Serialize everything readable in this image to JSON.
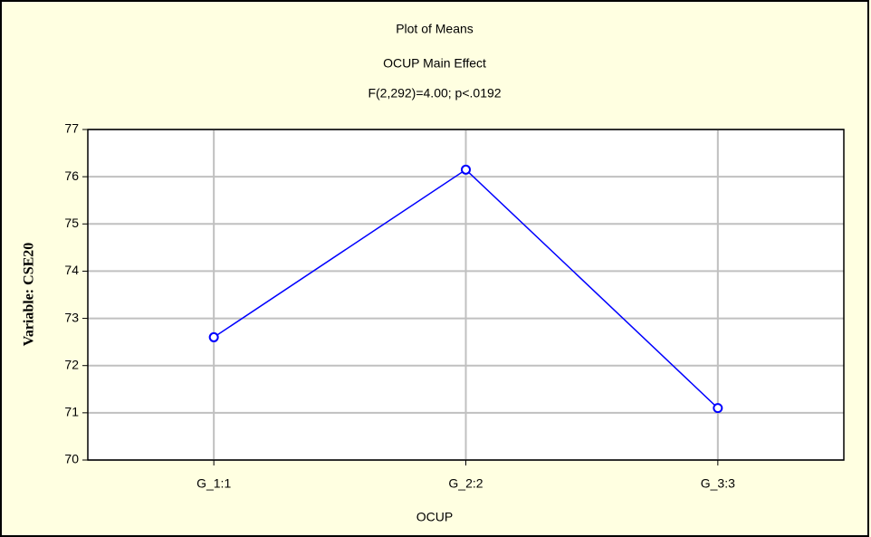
{
  "chart_data": {
    "type": "line",
    "title": "Plot of Means",
    "subtitle": "OCUP Main Effect",
    "annotation": "F(2,292)=4.00; p<.0192",
    "x_label": "OCUP",
    "y_label": "Variable: CSE20",
    "categories": [
      "G_1:1",
      "G_2:2",
      "G_3:3"
    ],
    "series": [
      {
        "name": "CSE20",
        "color": "#0000ff",
        "values": [
          72.6,
          76.15,
          71.1
        ]
      }
    ],
    "ylim": [
      70,
      77
    ],
    "yticks": [
      70,
      71,
      72,
      73,
      74,
      75,
      76,
      77
    ],
    "grid": true
  }
}
